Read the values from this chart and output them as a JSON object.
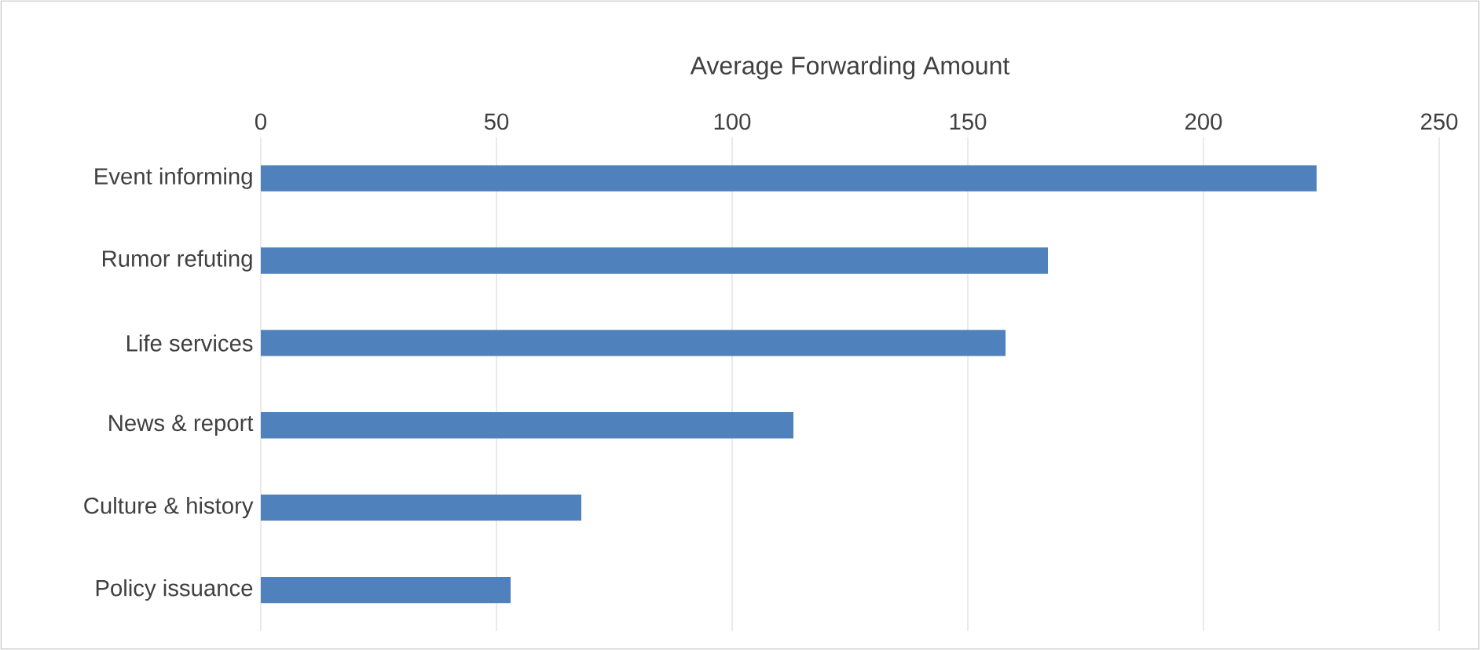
{
  "chart_data": {
    "type": "bar",
    "orientation": "horizontal",
    "xlabel": "Average Forwarding Amount",
    "categories": [
      "Event informing",
      "Rumor refuting",
      "Life services",
      "News & report",
      "Culture & history",
      "Policy issuance"
    ],
    "values": [
      224,
      167,
      158,
      113,
      68,
      53
    ],
    "color": "#4f81bd",
    "xlim": [
      0,
      250
    ],
    "xticks": [
      0,
      50,
      100,
      150,
      200,
      250
    ],
    "grid": "x"
  }
}
